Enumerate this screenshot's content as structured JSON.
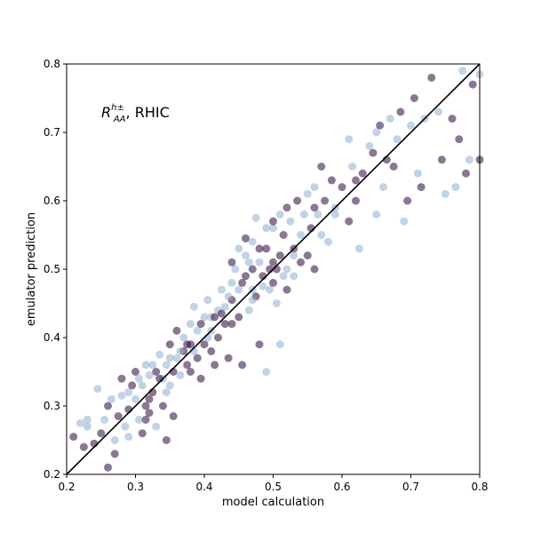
{
  "chart_data": {
    "type": "scatter",
    "xlabel": "model calculation",
    "ylabel": "emulator prediction",
    "xlim": [
      0.2,
      0.8
    ],
    "ylim": [
      0.2,
      0.8
    ],
    "xticks": [
      "0.2",
      "0.3",
      "0.4",
      "0.5",
      "0.6",
      "0.7",
      "0.8"
    ],
    "yticks": [
      "0.2",
      "0.3",
      "0.4",
      "0.5",
      "0.6",
      "0.7",
      "0.8"
    ],
    "annotation": {
      "main": "R",
      "sup": "h±",
      "sub": "AA",
      "rest": ", RHIC"
    },
    "grid": false,
    "reference_line": {
      "x": [
        0.2,
        0.8
      ],
      "y": [
        0.2,
        0.8
      ],
      "color": "#000000"
    },
    "marker_alpha": 0.55,
    "palette": [
      "#2a0a3a",
      "#4a1a55",
      "#6a2a6a",
      "#8a4a8a",
      "#a07aa5",
      "#4a4aa0",
      "#6a7ac0",
      "#8faed0",
      "#c8d8e6",
      "#e8e0ea",
      "#e6c8c0",
      "#c89080",
      "#a55a50",
      "#8a2a2a"
    ],
    "points": [
      [
        0.21,
        0.255
      ],
      [
        0.22,
        0.275
      ],
      [
        0.225,
        0.24
      ],
      [
        0.23,
        0.28
      ],
      [
        0.24,
        0.245
      ],
      [
        0.245,
        0.325
      ],
      [
        0.25,
        0.26
      ],
      [
        0.255,
        0.28
      ],
      [
        0.26,
        0.21
      ],
      [
        0.265,
        0.31
      ],
      [
        0.27,
        0.23
      ],
      [
        0.27,
        0.25
      ],
      [
        0.275,
        0.285
      ],
      [
        0.28,
        0.315
      ],
      [
        0.28,
        0.34
      ],
      [
        0.285,
        0.27
      ],
      [
        0.29,
        0.295
      ],
      [
        0.29,
        0.255
      ],
      [
        0.295,
        0.33
      ],
      [
        0.3,
        0.31
      ],
      [
        0.3,
        0.35
      ],
      [
        0.305,
        0.28
      ],
      [
        0.31,
        0.26
      ],
      [
        0.31,
        0.33
      ],
      [
        0.315,
        0.3
      ],
      [
        0.315,
        0.36
      ],
      [
        0.32,
        0.29
      ],
      [
        0.32,
        0.345
      ],
      [
        0.325,
        0.32
      ],
      [
        0.33,
        0.27
      ],
      [
        0.33,
        0.35
      ],
      [
        0.335,
        0.375
      ],
      [
        0.34,
        0.3
      ],
      [
        0.34,
        0.34
      ],
      [
        0.345,
        0.25
      ],
      [
        0.345,
        0.36
      ],
      [
        0.35,
        0.39
      ],
      [
        0.35,
        0.33
      ],
      [
        0.355,
        0.285
      ],
      [
        0.36,
        0.37
      ],
      [
        0.36,
        0.41
      ],
      [
        0.365,
        0.345
      ],
      [
        0.37,
        0.38
      ],
      [
        0.37,
        0.4
      ],
      [
        0.375,
        0.36
      ],
      [
        0.38,
        0.42
      ],
      [
        0.38,
        0.39
      ],
      [
        0.385,
        0.445
      ],
      [
        0.39,
        0.37
      ],
      [
        0.39,
        0.41
      ],
      [
        0.395,
        0.34
      ],
      [
        0.4,
        0.43
      ],
      [
        0.4,
        0.39
      ],
      [
        0.405,
        0.455
      ],
      [
        0.41,
        0.38
      ],
      [
        0.41,
        0.41
      ],
      [
        0.415,
        0.36
      ],
      [
        0.42,
        0.44
      ],
      [
        0.42,
        0.4
      ],
      [
        0.425,
        0.47
      ],
      [
        0.43,
        0.42
      ],
      [
        0.43,
        0.445
      ],
      [
        0.435,
        0.37
      ],
      [
        0.44,
        0.48
      ],
      [
        0.44,
        0.455
      ],
      [
        0.445,
        0.5
      ],
      [
        0.45,
        0.43
      ],
      [
        0.45,
        0.47
      ],
      [
        0.455,
        0.36
      ],
      [
        0.46,
        0.52
      ],
      [
        0.46,
        0.49
      ],
      [
        0.465,
        0.44
      ],
      [
        0.47,
        0.5
      ],
      [
        0.47,
        0.54
      ],
      [
        0.475,
        0.46
      ],
      [
        0.48,
        0.51
      ],
      [
        0.48,
        0.39
      ],
      [
        0.485,
        0.475
      ],
      [
        0.49,
        0.53
      ],
      [
        0.49,
        0.35
      ],
      [
        0.495,
        0.5
      ],
      [
        0.5,
        0.56
      ],
      [
        0.5,
        0.48
      ],
      [
        0.505,
        0.45
      ],
      [
        0.51,
        0.52
      ],
      [
        0.51,
        0.39
      ],
      [
        0.515,
        0.55
      ],
      [
        0.52,
        0.5
      ],
      [
        0.52,
        0.47
      ],
      [
        0.525,
        0.57
      ],
      [
        0.53,
        0.53
      ],
      [
        0.53,
        0.49
      ],
      [
        0.535,
        0.6
      ],
      [
        0.54,
        0.55
      ],
      [
        0.54,
        0.51
      ],
      [
        0.545,
        0.58
      ],
      [
        0.55,
        0.52
      ],
      [
        0.55,
        0.61
      ],
      [
        0.555,
        0.56
      ],
      [
        0.56,
        0.62
      ],
      [
        0.56,
        0.5
      ],
      [
        0.565,
        0.58
      ],
      [
        0.57,
        0.65
      ],
      [
        0.57,
        0.55
      ],
      [
        0.575,
        0.6
      ],
      [
        0.58,
        0.54
      ],
      [
        0.585,
        0.63
      ],
      [
        0.59,
        0.59
      ],
      [
        0.6,
        0.62
      ],
      [
        0.61,
        0.69
      ],
      [
        0.61,
        0.57
      ],
      [
        0.615,
        0.65
      ],
      [
        0.62,
        0.6
      ],
      [
        0.625,
        0.53
      ],
      [
        0.63,
        0.64
      ],
      [
        0.64,
        0.68
      ],
      [
        0.645,
        0.67
      ],
      [
        0.65,
        0.58
      ],
      [
        0.655,
        0.71
      ],
      [
        0.66,
        0.62
      ],
      [
        0.665,
        0.66
      ],
      [
        0.67,
        0.72
      ],
      [
        0.675,
        0.65
      ],
      [
        0.68,
        0.69
      ],
      [
        0.685,
        0.73
      ],
      [
        0.69,
        0.57
      ],
      [
        0.695,
        0.6
      ],
      [
        0.7,
        0.71
      ],
      [
        0.705,
        0.75
      ],
      [
        0.71,
        0.64
      ],
      [
        0.715,
        0.62
      ],
      [
        0.72,
        0.72
      ],
      [
        0.73,
        0.78
      ],
      [
        0.74,
        0.73
      ],
      [
        0.745,
        0.66
      ],
      [
        0.75,
        0.61
      ],
      [
        0.76,
        0.72
      ],
      [
        0.765,
        0.62
      ],
      [
        0.77,
        0.69
      ],
      [
        0.775,
        0.79
      ],
      [
        0.78,
        0.64
      ],
      [
        0.785,
        0.66
      ],
      [
        0.79,
        0.77
      ],
      [
        0.8,
        0.785
      ],
      [
        0.8,
        0.66
      ],
      [
        0.23,
        0.27
      ],
      [
        0.26,
        0.3
      ],
      [
        0.29,
        0.32
      ],
      [
        0.32,
        0.31
      ],
      [
        0.35,
        0.37
      ],
      [
        0.38,
        0.35
      ],
      [
        0.41,
        0.43
      ],
      [
        0.44,
        0.42
      ],
      [
        0.47,
        0.47
      ],
      [
        0.5,
        0.51
      ],
      [
        0.53,
        0.52
      ],
      [
        0.56,
        0.59
      ],
      [
        0.59,
        0.58
      ],
      [
        0.62,
        0.63
      ],
      [
        0.65,
        0.7
      ],
      [
        0.44,
        0.51
      ],
      [
        0.45,
        0.53
      ],
      [
        0.46,
        0.545
      ],
      [
        0.475,
        0.575
      ],
      [
        0.48,
        0.53
      ],
      [
        0.49,
        0.56
      ],
      [
        0.5,
        0.57
      ],
      [
        0.51,
        0.58
      ],
      [
        0.52,
        0.59
      ],
      [
        0.465,
        0.51
      ],
      [
        0.455,
        0.48
      ],
      [
        0.47,
        0.455
      ],
      [
        0.485,
        0.49
      ],
      [
        0.495,
        0.47
      ],
      [
        0.505,
        0.5
      ],
      [
        0.515,
        0.49
      ],
      [
        0.425,
        0.435
      ],
      [
        0.435,
        0.46
      ],
      [
        0.415,
        0.43
      ],
      [
        0.405,
        0.4
      ],
      [
        0.395,
        0.42
      ],
      [
        0.385,
        0.38
      ],
      [
        0.375,
        0.39
      ],
      [
        0.365,
        0.38
      ],
      [
        0.355,
        0.35
      ],
      [
        0.345,
        0.32
      ],
      [
        0.335,
        0.34
      ],
      [
        0.325,
        0.36
      ],
      [
        0.315,
        0.28
      ],
      [
        0.305,
        0.34
      ]
    ]
  }
}
